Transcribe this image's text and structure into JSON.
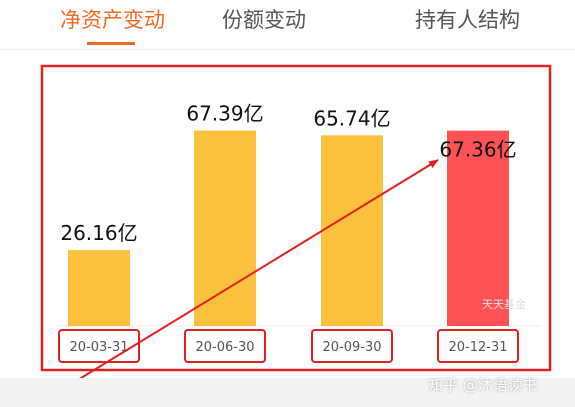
{
  "tabs": [
    {
      "label": "净资产变动",
      "active": true
    },
    {
      "label": "份额变动",
      "active": false
    },
    {
      "label": "持有人结构",
      "active": false
    }
  ],
  "colors": {
    "accent": "#f26a21",
    "bar_default": "#fbc13c",
    "bar_highlight": "#fe5255",
    "annotation": "#e02020"
  },
  "chart_data": {
    "type": "bar",
    "title": "",
    "xlabel": "",
    "ylabel": "",
    "unit": "亿",
    "ylim": [
      0,
      80
    ],
    "grid": false,
    "categories": [
      "20-03-31",
      "20-06-30",
      "20-09-30",
      "20-12-31"
    ],
    "values": [
      26.16,
      67.39,
      65.74,
      67.36
    ],
    "data_labels": [
      "26.16亿",
      "67.39亿",
      "65.74亿",
      "67.36亿"
    ],
    "highlight_index": 3
  },
  "watermarks": {
    "chart_source": "天天基金",
    "platform": "知乎 @沐语读书"
  }
}
